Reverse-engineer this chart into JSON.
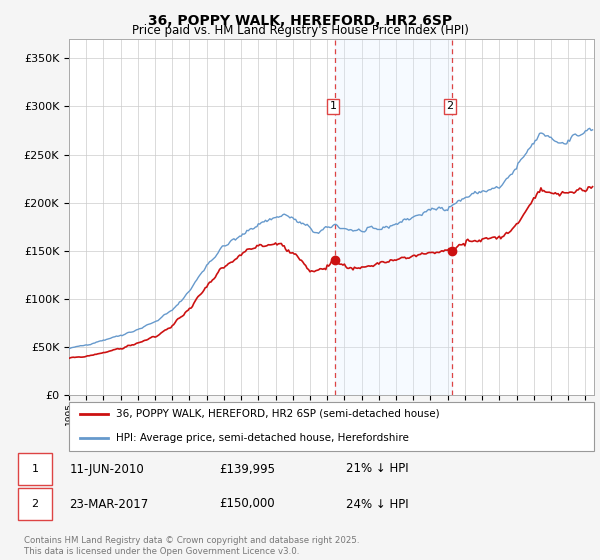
{
  "title": "36, POPPY WALK, HEREFORD, HR2 6SP",
  "subtitle": "Price paid vs. HM Land Registry's House Price Index (HPI)",
  "ylim": [
    0,
    370000
  ],
  "yticks": [
    0,
    50000,
    100000,
    150000,
    200000,
    250000,
    300000,
    350000
  ],
  "ytick_labels": [
    "£0",
    "£50K",
    "£100K",
    "£150K",
    "£200K",
    "£250K",
    "£300K",
    "£350K"
  ],
  "xlim_start": 1995.0,
  "xlim_end": 2025.5,
  "transaction1": {
    "date_num": 2010.44,
    "price": 139995,
    "label": "1",
    "date_str": "11-JUN-2010",
    "price_str": "£139,995",
    "hpi_str": "21% ↓ HPI"
  },
  "transaction2": {
    "date_num": 2017.23,
    "price": 150000,
    "label": "2",
    "date_str": "23-MAR-2017",
    "price_str": "£150,000",
    "hpi_str": "24% ↓ HPI"
  },
  "hpi_color": "#6699cc",
  "price_color": "#cc1111",
  "marker_color": "#cc1111",
  "shaded_color": "#ddeeff",
  "vline_color": "#dd4444",
  "legend1_label": "36, POPPY WALK, HEREFORD, HR2 6SP (semi-detached house)",
  "legend2_label": "HPI: Average price, semi-detached house, Herefordshire",
  "footer": "Contains HM Land Registry data © Crown copyright and database right 2025.\nThis data is licensed under the Open Government Licence v3.0.",
  "background_color": "#f5f5f5",
  "plot_bg_color": "#ffffff"
}
